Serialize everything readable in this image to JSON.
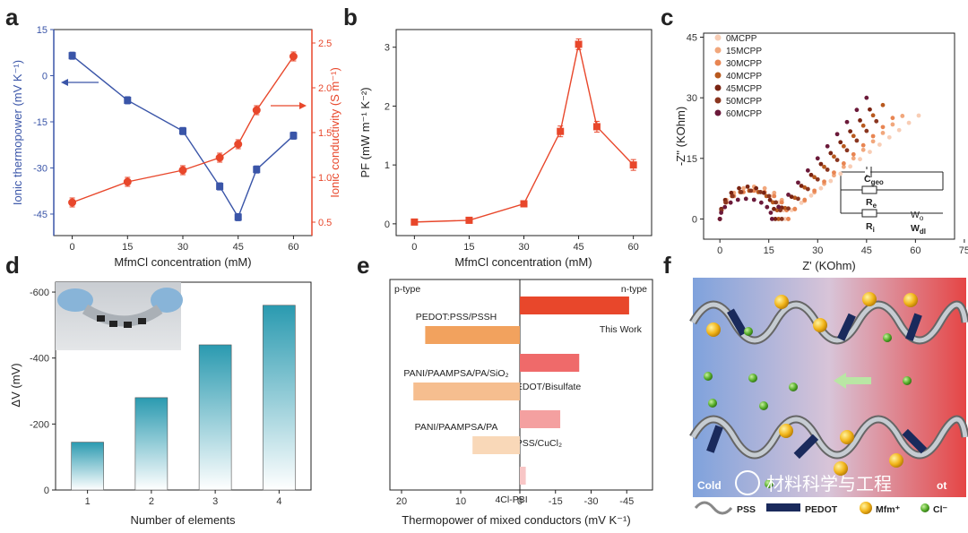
{
  "panels": {
    "a": "a",
    "b": "b",
    "c": "c",
    "d": "d",
    "e": "e",
    "f": "f"
  },
  "colors": {
    "blue": "#3a55a8",
    "red": "#e8472b",
    "orange": "#e8602e",
    "teal": "#2a9ab0"
  },
  "chart_data": [
    {
      "id": "a",
      "type": "line",
      "xlabel": "MfmCl concentration (mM)",
      "ylabel_left": "Ionic thermopower (mV K⁻¹)",
      "ylabel_right": "Ionic conductivity (S m⁻¹)",
      "x": [
        0,
        15,
        30,
        40,
        45,
        50,
        60
      ],
      "xticks": [
        "0",
        "15",
        "30",
        "45",
        "60"
      ],
      "yticks_left": [
        "15",
        "0",
        "-15",
        "-30",
        "-45"
      ],
      "yticks_right": [
        "0.5",
        "1.0",
        "1.5",
        "2.0",
        "2.5"
      ],
      "xlim": [
        -5,
        65
      ],
      "ylim_left": [
        -52,
        15
      ],
      "ylim_right": [
        0.35,
        2.65
      ],
      "series": [
        {
          "axis": "left",
          "color": "#3a55a8",
          "marker": "square",
          "values": [
            6.5,
            -8,
            -18,
            -36,
            -46,
            -30.5,
            -19.5
          ]
        },
        {
          "axis": "right",
          "color": "#e8472b",
          "marker": "circle",
          "values": [
            0.72,
            0.95,
            1.08,
            1.22,
            1.37,
            1.75,
            2.35
          ]
        }
      ]
    },
    {
      "id": "b",
      "type": "line",
      "xlabel": "MfmCl concentration (mM)",
      "ylabel": "PF (mW m⁻¹ K⁻²)",
      "x": [
        0,
        15,
        30,
        40,
        45,
        50,
        60
      ],
      "values": [
        0.03,
        0.06,
        0.34,
        1.57,
        3.05,
        1.65,
        1.0
      ],
      "xticks": [
        "0",
        "15",
        "30",
        "45",
        "60"
      ],
      "yticks": [
        "0",
        "1",
        "2",
        "3"
      ],
      "xlim": [
        -5,
        65
      ],
      "ylim": [
        -0.2,
        3.3
      ],
      "color": "#e8472b"
    },
    {
      "id": "c",
      "type": "scatter",
      "xlabel": "Z' (KOhm)",
      "ylabel": "-Z'' (KOhm)",
      "xticks": [
        "0",
        "15",
        "30",
        "45",
        "60",
        "75"
      ],
      "yticks": [
        "0",
        "15",
        "30",
        "45"
      ],
      "xlim": [
        -5,
        72
      ],
      "ylim": [
        -5,
        46
      ],
      "legend": [
        "0MCPP",
        "15MCPP",
        "30MCPP",
        "40MCPP",
        "45MCPP",
        "50MCPP",
        "60MCPP"
      ],
      "legend_colors": [
        "#f8cdb5",
        "#f1a77c",
        "#e88552",
        "#b8591e",
        "#7a2412",
        "#8a3620",
        "#6b1a3a"
      ],
      "circuit_labels": {
        "cgeo": "C",
        "cgeo_sub": "geo",
        "re": "R",
        "re_sub": "e",
        "ri": "R",
        "ri_sub": "i",
        "wo": "W",
        "wo_sub": "o",
        "wdl": "W",
        "wdl_sub": "dl"
      }
    },
    {
      "id": "d",
      "type": "bar",
      "xlabel": "Number of elements",
      "ylabel": "ΔV (mV)",
      "categories": [
        "1",
        "2",
        "3",
        "4"
      ],
      "values": [
        -145,
        -280,
        -440,
        -560
      ],
      "yticks": [
        "-600",
        "-400",
        "-200",
        "0"
      ],
      "ylim": [
        0,
        -630
      ],
      "color": "#2a9ab0"
    },
    {
      "id": "e",
      "type": "bar",
      "xlabel": "Thermopower of mixed conductors (mV K⁻¹)",
      "left_label": "p-type",
      "right_label": "n-type",
      "xticks": [
        "20",
        "10",
        "0",
        "-15",
        "-30",
        "-45"
      ],
      "bars": [
        {
          "name": "This Work",
          "value": -46,
          "color": "#e8472b"
        },
        {
          "name": "PEDOT:PSS/PSSH",
          "value": 16,
          "color": "#f2a25e"
        },
        {
          "name": "PAMPS/PEDOT/Bisulfate",
          "value": -25,
          "color": "#ef6a6a"
        },
        {
          "name": "PANI/PAAMPSA/PA/SiO₂",
          "value": 18,
          "color": "#f6be8f"
        },
        {
          "name": "PEDOT:PSS/CuCl₂",
          "value": -17,
          "color": "#f4a0a0"
        },
        {
          "name": "PANI/PAAMPSA/PA",
          "value": 8,
          "color": "#f9d8b8"
        },
        {
          "name": "4Cl-PBI",
          "value": -2.5,
          "color": "#f8c6c6"
        }
      ]
    }
  ],
  "panel_f": {
    "cold": "Cold",
    "hot": "ot",
    "watermark": "材料科学与工程",
    "legend": [
      "PSS",
      "PEDOT",
      "Mfm⁺",
      "Cl⁻"
    ]
  }
}
